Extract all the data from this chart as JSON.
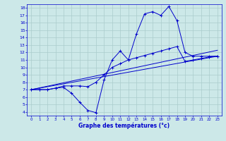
{
  "xlabel": "Graphe des températures (°c)",
  "bg_color": "#cce8e8",
  "grid_color": "#aacccc",
  "line_color": "#0000cc",
  "xlim": [
    -0.5,
    23.5
  ],
  "ylim": [
    3.5,
    18.5
  ],
  "yticks": [
    4,
    5,
    6,
    7,
    8,
    9,
    10,
    11,
    12,
    13,
    14,
    15,
    16,
    17,
    18
  ],
  "xticks": [
    0,
    1,
    2,
    3,
    4,
    5,
    6,
    7,
    8,
    9,
    10,
    11,
    12,
    13,
    14,
    15,
    16,
    17,
    18,
    19,
    20,
    21,
    22,
    23
  ],
  "line1_x": [
    0,
    1,
    2,
    3,
    4,
    5,
    6,
    7,
    8,
    9,
    10,
    11,
    12,
    13,
    14,
    15,
    16,
    17,
    18,
    19,
    20,
    21,
    22,
    23
  ],
  "line1_y": [
    7.0,
    7.0,
    7.0,
    7.2,
    7.3,
    6.5,
    5.3,
    4.2,
    3.9,
    8.3,
    11.0,
    12.2,
    11.0,
    14.5,
    17.2,
    17.5,
    17.0,
    18.2,
    16.3,
    12.0,
    11.5,
    11.5,
    11.5,
    11.5
  ],
  "line2_x": [
    0,
    23
  ],
  "line2_y": [
    7.0,
    11.5
  ],
  "line3_x": [
    0,
    23
  ],
  "line3_y": [
    7.0,
    12.3
  ],
  "line4_x": [
    0,
    1,
    2,
    3,
    4,
    5,
    6,
    7,
    8,
    9,
    10,
    11,
    12,
    13,
    14,
    15,
    16,
    17,
    18,
    19,
    20,
    21,
    22,
    23
  ],
  "line4_y": [
    7.0,
    7.0,
    7.0,
    7.2,
    7.5,
    7.5,
    7.5,
    7.4,
    8.0,
    9.0,
    10.0,
    10.5,
    11.0,
    11.3,
    11.6,
    11.9,
    12.2,
    12.5,
    12.8,
    10.8,
    11.0,
    11.2,
    11.4,
    11.5
  ]
}
